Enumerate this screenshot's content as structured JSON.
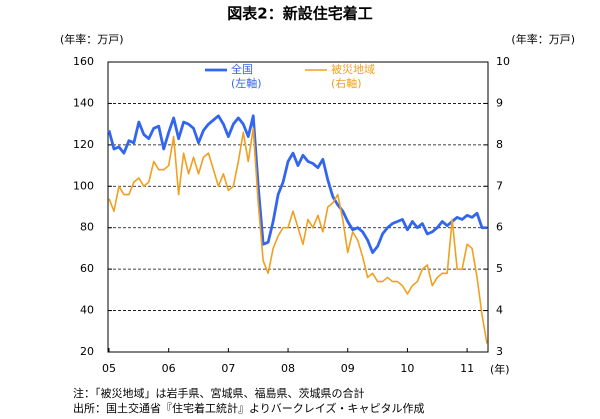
{
  "chart_data": {
    "type": "line",
    "title": "図表2：新設住宅着工",
    "y_label": "(年率：万戸)",
    "y2_label": "(年率：万戸)",
    "x_unit": "(年)",
    "notes": [
      "注：「被災地域」は岩手県、宮城県、福島県、茨城県の合計",
      "出所：国土交通省『住宅着工統計』よりバークレイズ・キャピタル作成"
    ],
    "categories": [
      "05",
      null,
      null,
      null,
      null,
      null,
      null,
      null,
      null,
      null,
      null,
      null,
      "06",
      null,
      null,
      null,
      null,
      null,
      null,
      null,
      null,
      null,
      null,
      null,
      "07",
      null,
      null,
      null,
      null,
      null,
      null,
      null,
      null,
      null,
      null,
      null,
      "08",
      null,
      null,
      null,
      null,
      null,
      null,
      null,
      null,
      null,
      null,
      null,
      "09",
      null,
      null,
      null,
      null,
      null,
      null,
      null,
      null,
      null,
      null,
      null,
      "10",
      null,
      null,
      null,
      null,
      null,
      null,
      null,
      null,
      null,
      null,
      null,
      "11",
      null,
      null,
      null,
      null
    ],
    "series": [
      {
        "name": "全国",
        "legend_note": "(左軸)",
        "color": "#3366ee",
        "axis": "y",
        "values": [
          127,
          118,
          119,
          116,
          122,
          121,
          131,
          125,
          123,
          128,
          129,
          118,
          126,
          133,
          123,
          131,
          130,
          128,
          121,
          127,
          130,
          132,
          134,
          130,
          124,
          130,
          133,
          130,
          124,
          134,
          100,
          72,
          73,
          83,
          96,
          102,
          112,
          116,
          110,
          115,
          112,
          111,
          109,
          113,
          103,
          95,
          91,
          88,
          83,
          79,
          80,
          78,
          74,
          68,
          71,
          77,
          80,
          82,
          83,
          84,
          79,
          83,
          80,
          82,
          77,
          78,
          80,
          83,
          81,
          83,
          85,
          84,
          86,
          85,
          87,
          80,
          80
        ]
      },
      {
        "name": "被災地域",
        "legend_note": "(右軸)",
        "color": "#f0a020",
        "axis": "y2",
        "values": [
          6.7,
          6.4,
          7.0,
          6.8,
          6.8,
          7.1,
          7.2,
          7.0,
          7.1,
          7.6,
          7.4,
          7.4,
          7.5,
          8.2,
          6.8,
          7.8,
          7.3,
          7.7,
          7.3,
          7.7,
          7.8,
          7.4,
          7.0,
          7.3,
          6.9,
          7.0,
          7.6,
          8.3,
          7.6,
          8.4,
          6.6,
          5.2,
          4.9,
          5.5,
          5.8,
          6.0,
          6.0,
          6.4,
          6.0,
          5.6,
          6.2,
          6.0,
          6.3,
          5.9,
          6.5,
          6.6,
          6.8,
          6.2,
          5.4,
          5.9,
          5.7,
          5.3,
          4.8,
          4.9,
          4.7,
          4.7,
          4.8,
          4.7,
          4.7,
          4.6,
          4.4,
          4.6,
          4.7,
          5.0,
          5.1,
          4.6,
          4.8,
          4.9,
          4.9,
          6.2,
          5.0,
          5.0,
          5.6,
          5.5,
          4.8,
          3.9,
          3.2
        ]
      }
    ],
    "ylim": [
      20,
      160
    ],
    "yticks": [
      20,
      40,
      60,
      80,
      100,
      120,
      140,
      160
    ],
    "y2lim": [
      3,
      10
    ],
    "y2ticks": [
      3,
      4,
      5,
      6,
      7,
      8,
      9,
      10
    ],
    "grid": true
  }
}
